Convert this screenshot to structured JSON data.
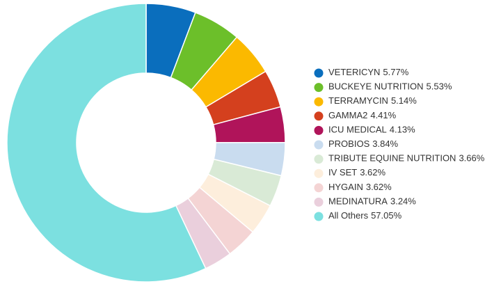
{
  "chart_data": {
    "type": "donut",
    "categories": [
      "VETERICYN",
      "BUCKEYE NUTRITION",
      "TERRAMYCIN",
      "GAMMA2",
      "ICU MEDICAL",
      "PROBIOS",
      "TRIBUTE EQUINE NUTRITION",
      "IV SET",
      "HYGAIN",
      "MEDINATURA",
      "All Others"
    ],
    "values": [
      5.77,
      5.53,
      5.14,
      4.41,
      4.13,
      3.84,
      3.66,
      3.62,
      3.62,
      3.24,
      57.05
    ],
    "value_labels": [
      "5.77%",
      "5.53%",
      "5.14%",
      "4.41%",
      "4.13%",
      "3.84%",
      "3.66%",
      "3.62%",
      "3.62%",
      "3.24%",
      "57.05%"
    ],
    "colors": [
      "#0a6ebd",
      "#6cbf2a",
      "#fbb900",
      "#d4401e",
      "#b0145a",
      "#c9dcef",
      "#d9ead6",
      "#fdeedc",
      "#f4d4d4",
      "#eacfdc",
      "#7ce0e0"
    ],
    "legend": "right"
  }
}
